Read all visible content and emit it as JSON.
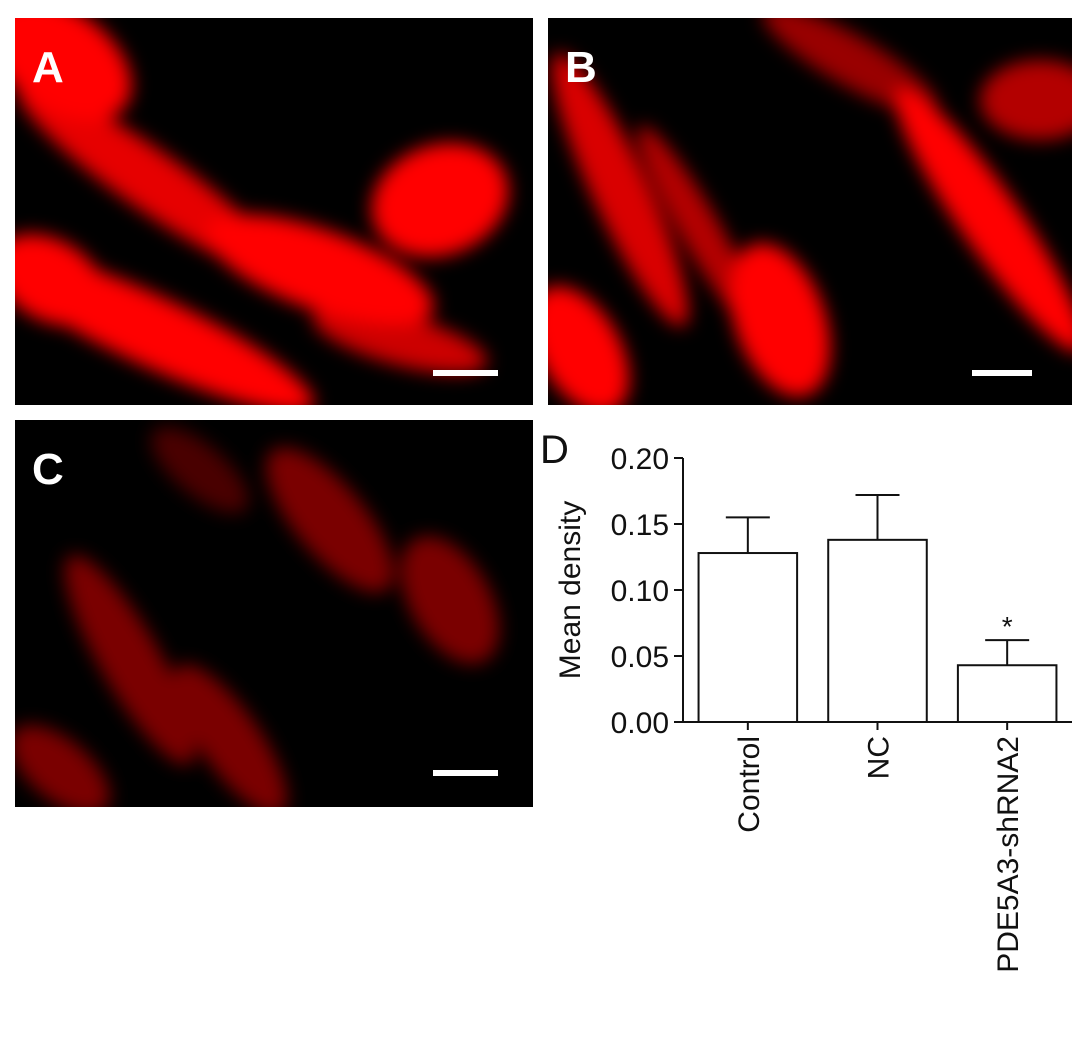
{
  "panel_labels": [
    "A",
    "B",
    "C"
  ],
  "chart_data": {
    "type": "bar",
    "label": "D",
    "ylabel": "Mean density",
    "categories": [
      "Control",
      "NC",
      "PDE5A3-shRNA2"
    ],
    "values": [
      0.128,
      0.138,
      0.043
    ],
    "errors": [
      0.027,
      0.034,
      0.019
    ],
    "significance": [
      null,
      null,
      "*"
    ],
    "color": "#ffffff",
    "ylim": [
      0,
      0.2
    ],
    "yticks": [
      {
        "value": 0,
        "label": "0.00"
      },
      {
        "value": 0.05,
        "label": "0.05"
      },
      {
        "value": 0.1,
        "label": "0.10"
      },
      {
        "value": 0.15,
        "label": "0.15"
      },
      {
        "value": 0.2,
        "label": "0.20"
      }
    ],
    "grid": false
  }
}
